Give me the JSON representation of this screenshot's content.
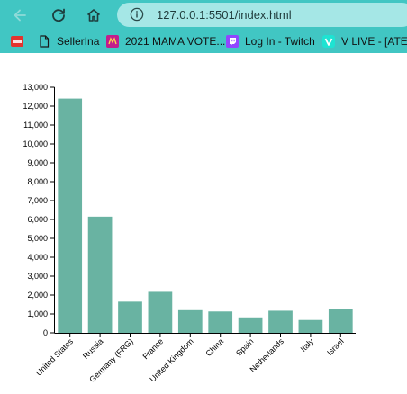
{
  "browser": {
    "url": "127.0.0.1:5501/index.html",
    "toolbar_color": "#41c6c3",
    "address_color": "#a5e7e6"
  },
  "bookmarks": [
    {
      "label": "",
      "icon": "pdf-icon"
    },
    {
      "label": "SellerIna",
      "icon": "document-icon"
    },
    {
      "label": "2021 MAMA VOTE...",
      "icon": "mama-icon"
    },
    {
      "label": "Log In - Twitch",
      "icon": "twitch-icon"
    },
    {
      "label": "V LIVE - [ATEEZ",
      "icon": "vlive-icon"
    }
  ],
  "chart_data": {
    "type": "bar",
    "categories": [
      "United States",
      "Russia",
      "Germany (FRG)",
      "France",
      "United Kingdom",
      "China",
      "Spain",
      "Netherlands",
      "Italy",
      "Israel"
    ],
    "values": [
      12400,
      6150,
      1650,
      2170,
      1200,
      1130,
      820,
      1170,
      680,
      1270
    ],
    "ylim": [
      0,
      13000
    ],
    "yticks": [
      "0",
      "1,000",
      "2,000",
      "3,000",
      "4,000",
      "5,000",
      "6,000",
      "7,000",
      "8,000",
      "9,000",
      "10,000",
      "11,000",
      "12,000",
      "13,000"
    ],
    "bar_color": "#69b3a2",
    "grid": false,
    "title": "",
    "xlabel": "",
    "ylabel": ""
  }
}
